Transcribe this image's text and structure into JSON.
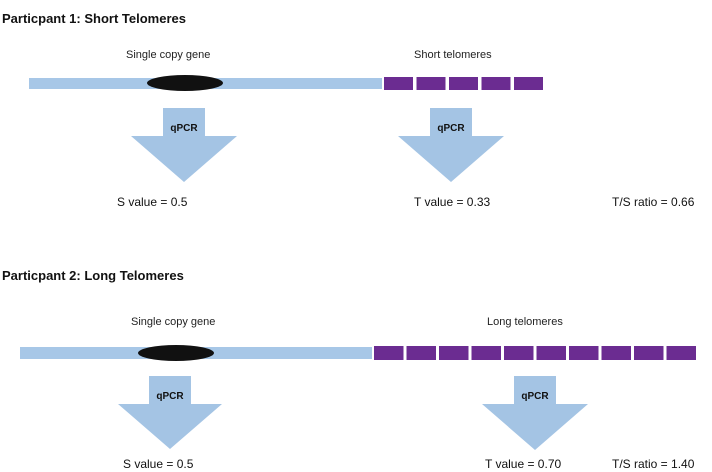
{
  "participants": [
    {
      "heading": "Particpant 1: Short Telomeres",
      "gene_label": "Single copy gene",
      "telomere_label": "Short telomeres",
      "arrow_label_1": "qPCR",
      "arrow_label_2": "qPCR",
      "s_value": "S value = 0.5",
      "t_value": "T value = 0.33",
      "ts_ratio": "T/S ratio = 0.66",
      "telomere_block_count": 5
    },
    {
      "heading": "Particpant 2: Long Telomeres",
      "gene_label": "Single copy gene",
      "telomere_label": "Long telomeres",
      "arrow_label_1": "qPCR",
      "arrow_label_2": "qPCR",
      "s_value": "S value = 0.5",
      "t_value": "T value = 0.70",
      "ts_ratio": "T/S ratio = 1.40",
      "telomere_block_count": 10
    }
  ],
  "colors": {
    "dna_strand": "#a7c7e7",
    "gene_oval": "#111111",
    "telomere_block": "#6b2c91",
    "arrow": "#a4c4e4",
    "heading_text": "#111111"
  }
}
